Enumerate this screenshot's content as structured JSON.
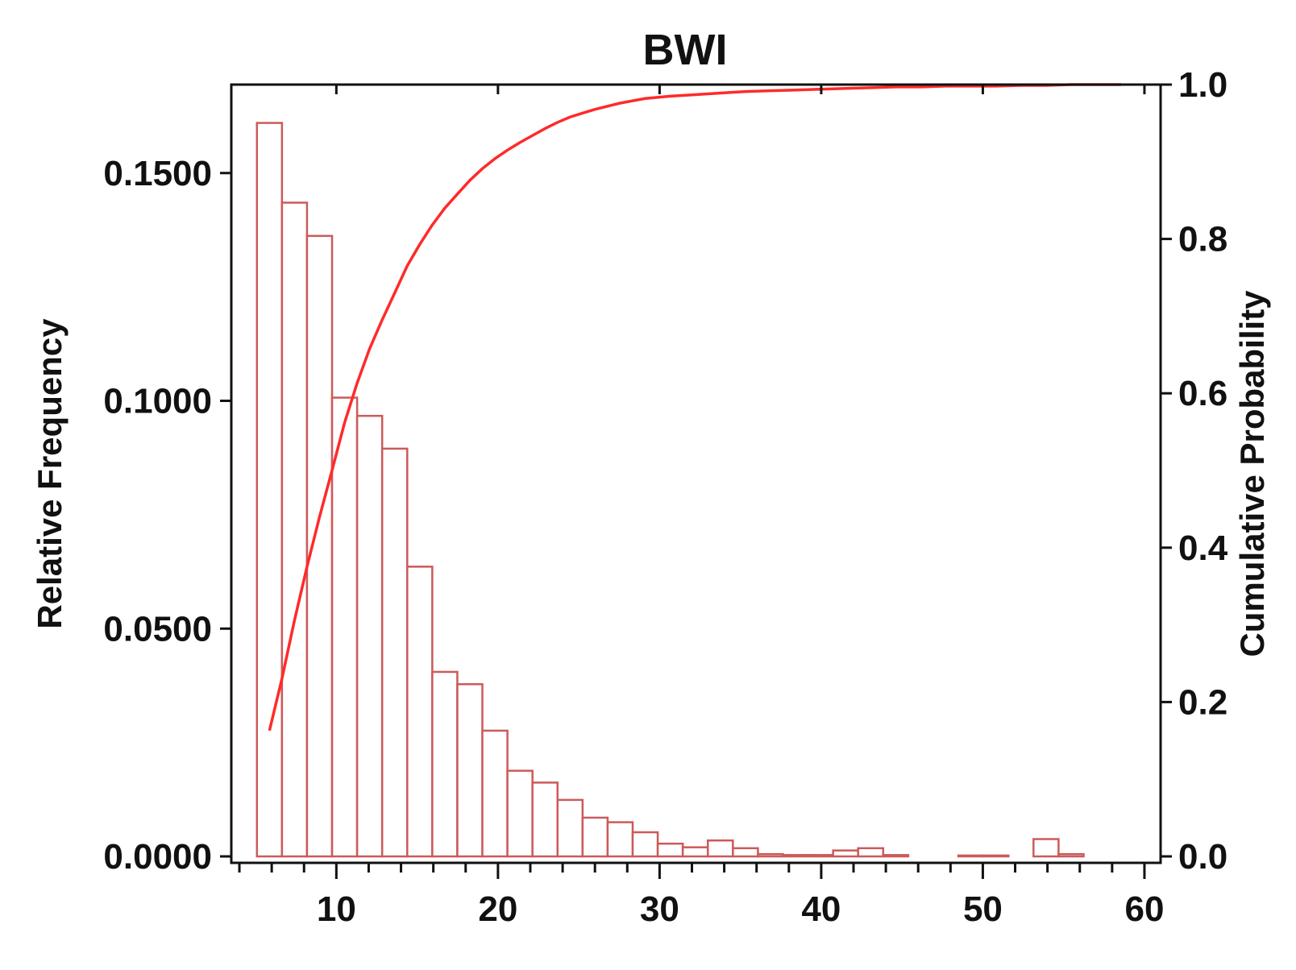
{
  "chart_data": {
    "type": "bar",
    "title": "BWI",
    "xlabel": "",
    "ylabel": "Relative Frequency",
    "y2label": "Cumulative Probability",
    "xlim": [
      3.5,
      61
    ],
    "ylim": [
      0,
      0.168
    ],
    "y2lim": [
      0,
      1.0
    ],
    "x_ticks": [
      10,
      20,
      30,
      40,
      50,
      60
    ],
    "x_tick_labels": [
      "10",
      "20",
      "30",
      "40",
      "50",
      "60"
    ],
    "y_ticks": [
      0,
      0.05,
      0.1,
      0.15
    ],
    "y_tick_labels": [
      "0.0000",
      "0.0500",
      "0.1000",
      "0.1500"
    ],
    "y2_ticks": [
      0,
      0.2,
      0.4,
      0.6,
      0.8,
      1.0
    ],
    "y2_tick_labels": [
      "0.0",
      "0.2",
      "0.4",
      "0.6",
      "0.8",
      "1.0"
    ],
    "grid": false,
    "bin_width": 1.55,
    "series": [
      {
        "type": "bar",
        "x": [
          5.86,
          7.41,
          8.96,
          10.51,
          12.06,
          13.61,
          15.16,
          16.71,
          18.26,
          19.81,
          21.36,
          22.91,
          24.46,
          26.01,
          27.56,
          29.11,
          30.66,
          32.21,
          33.76,
          35.31,
          36.86,
          38.41,
          39.96,
          41.51,
          43.06,
          44.61,
          46.16,
          47.71,
          49.26,
          50.81,
          52.36,
          53.91,
          55.46,
          57.01,
          58.56
        ],
        "values": [
          0.161,
          0.1435,
          0.1362,
          0.1007,
          0.0967,
          0.0895,
          0.0636,
          0.0405,
          0.0378,
          0.0276,
          0.0188,
          0.0162,
          0.0124,
          0.0085,
          0.0075,
          0.0053,
          0.0028,
          0.002,
          0.0035,
          0.0018,
          0.0005,
          0.0003,
          0.0003,
          0.0013,
          0.0018,
          0.0003,
          0.0,
          0.0,
          0.0002,
          0.0002,
          0.0,
          0.0038,
          0.0005,
          0.0,
          0.0
        ]
      },
      {
        "type": "line",
        "x": [
          5.86,
          6.63,
          7.41,
          8.18,
          8.96,
          9.73,
          10.51,
          11.28,
          12.06,
          12.83,
          13.61,
          14.38,
          15.16,
          15.93,
          16.71,
          17.48,
          18.26,
          19.03,
          19.81,
          20.58,
          21.36,
          22.13,
          22.91,
          23.68,
          24.46,
          25.23,
          26.01,
          27.56,
          29.11,
          30.66,
          32.21,
          33.76,
          35.31,
          36.86,
          38.41,
          39.96,
          41.51,
          43.06,
          44.61,
          46.16,
          47.71,
          49.26,
          50.81,
          52.36,
          53.91,
          55.46,
          57.01,
          58.56
        ],
        "values": [
          0.163,
          0.23,
          0.306,
          0.375,
          0.44,
          0.5,
          0.562,
          0.613,
          0.658,
          0.695,
          0.73,
          0.765,
          0.793,
          0.818,
          0.84,
          0.858,
          0.876,
          0.891,
          0.904,
          0.915,
          0.925,
          0.934,
          0.943,
          0.951,
          0.958,
          0.963,
          0.968,
          0.976,
          0.982,
          0.985,
          0.987,
          0.989,
          0.991,
          0.992,
          0.993,
          0.994,
          0.995,
          0.996,
          0.997,
          0.997,
          0.998,
          0.998,
          0.998,
          0.999,
          0.999,
          1.0,
          1.0,
          1.0
        ]
      }
    ]
  },
  "colors": {
    "bar_stroke": "#cc5a5a",
    "bar_fill": "#ffffff",
    "line": "#ff2a2a",
    "axis": "#111111"
  }
}
